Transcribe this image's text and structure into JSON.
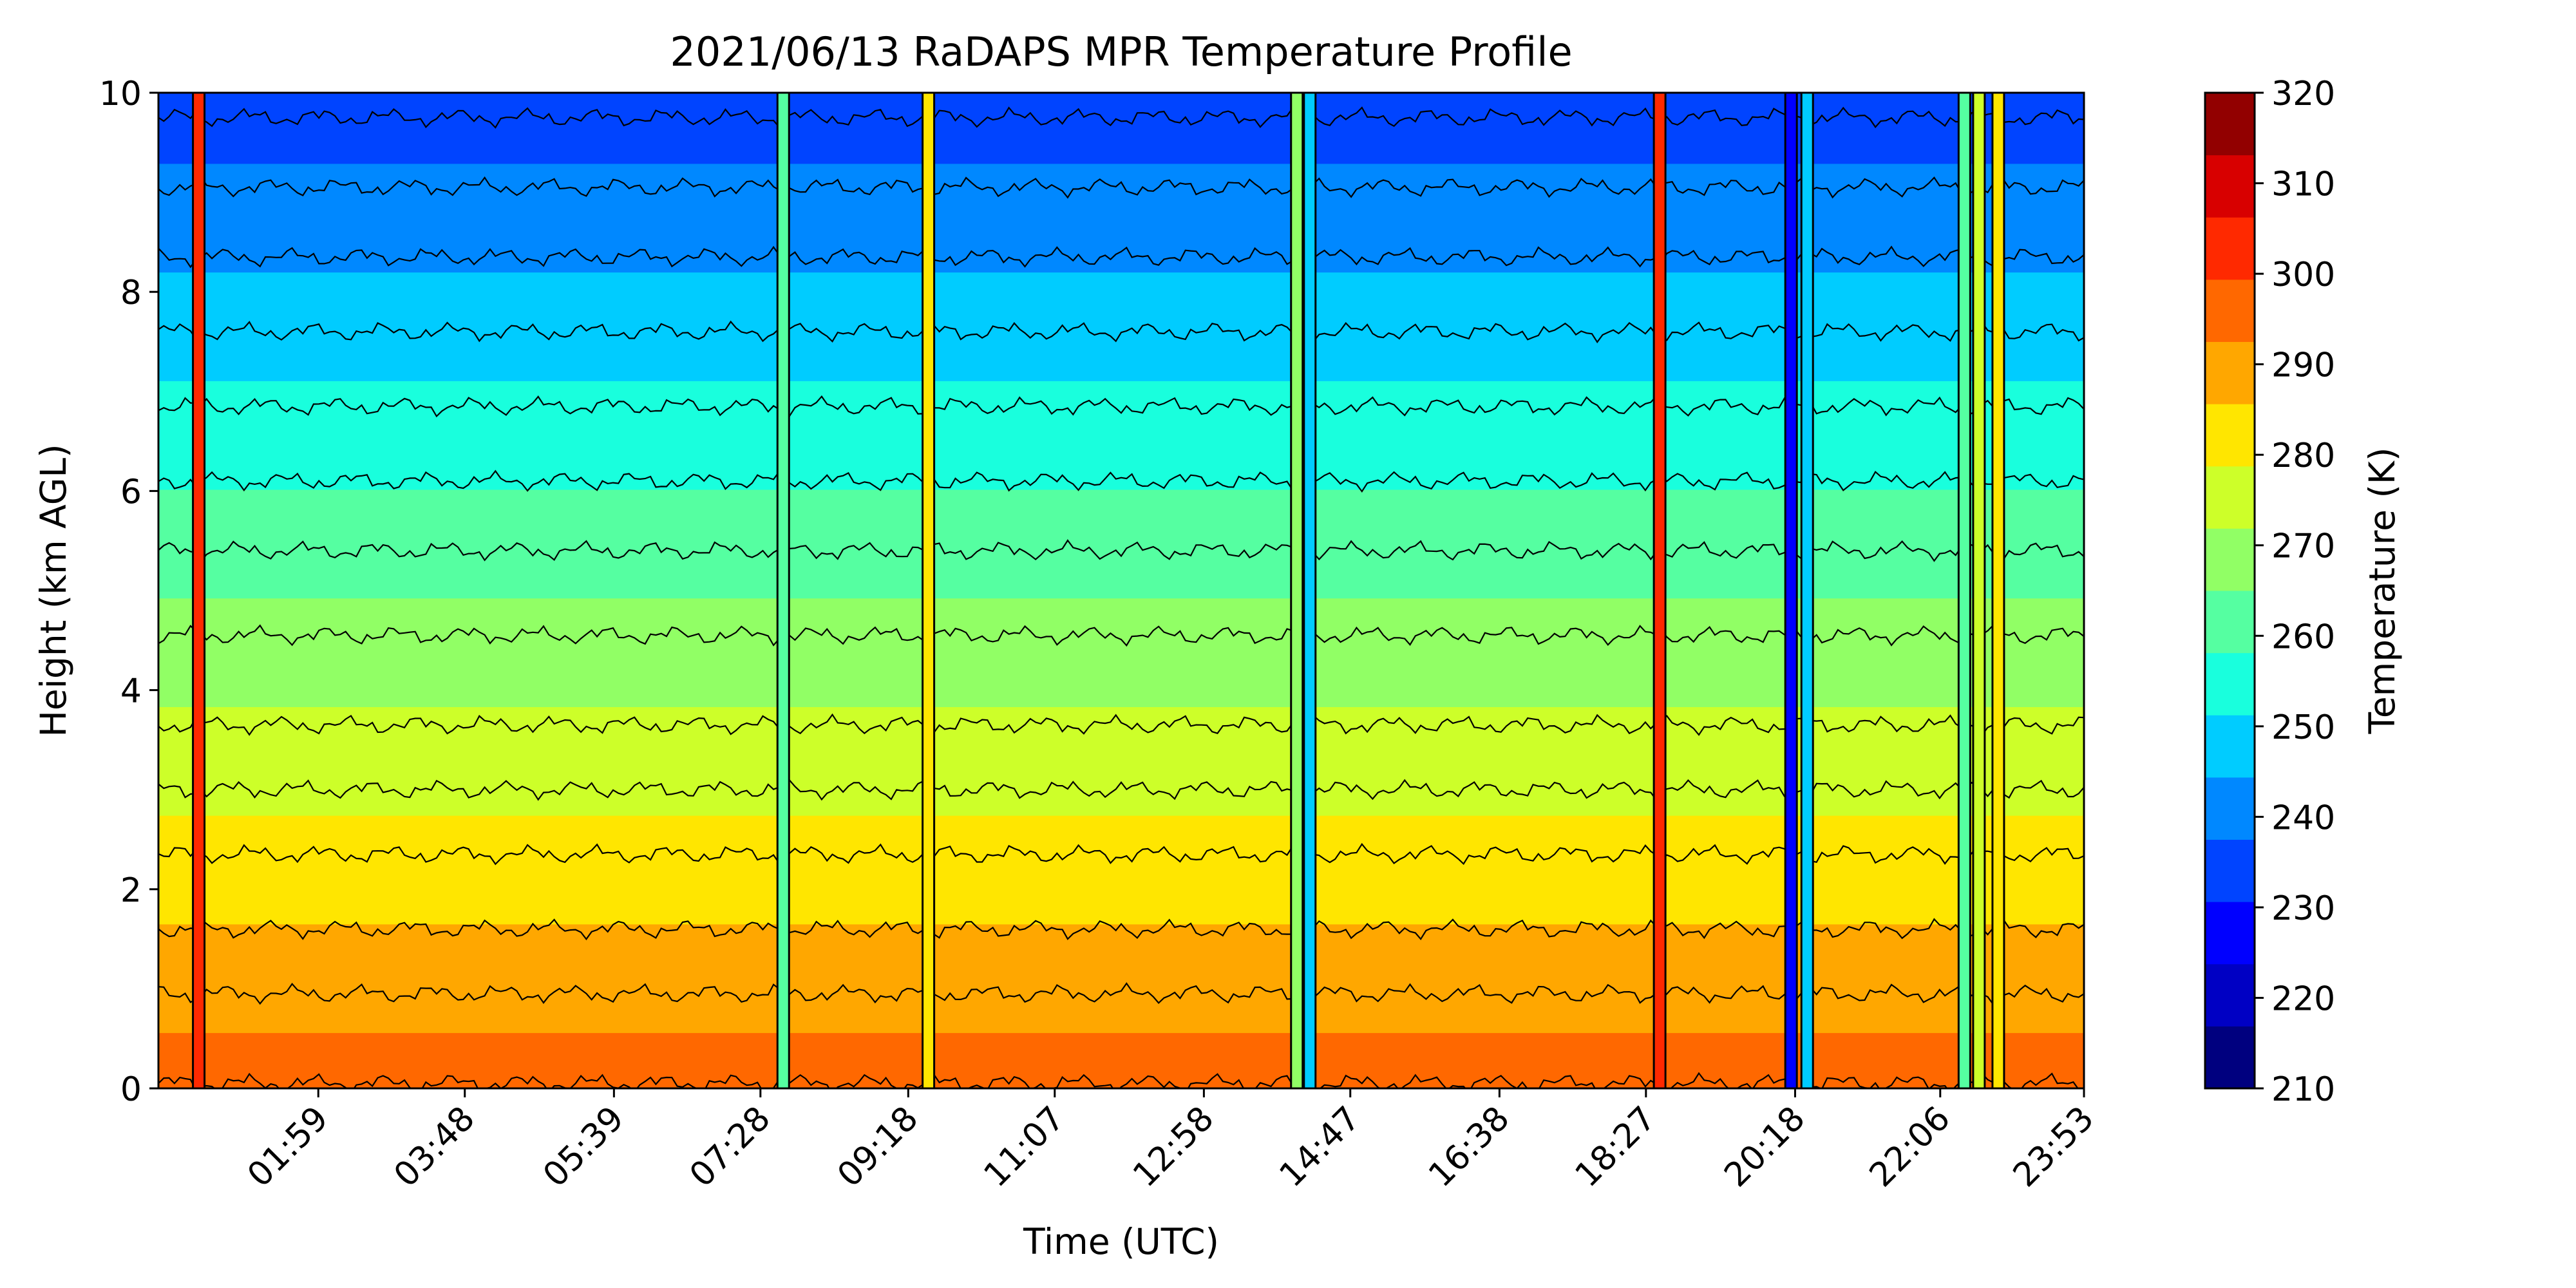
{
  "chart_data": {
    "type": "heatmap",
    "subtype": "filled-contour",
    "title": "2021/06/13 RaDAPS MPR Temperature Profile",
    "xlabel": "Time (UTC)",
    "ylabel": "Height (km AGL)",
    "x_range_hours": [
      0.0,
      23.883
    ],
    "ylim": [
      0,
      10
    ],
    "xticks": [
      {
        "label": "01:59",
        "hour": 1.983
      },
      {
        "label": "03:48",
        "hour": 3.8
      },
      {
        "label": "05:39",
        "hour": 5.65
      },
      {
        "label": "07:28",
        "hour": 7.467
      },
      {
        "label": "09:18",
        "hour": 9.3
      },
      {
        "label": "11:07",
        "hour": 11.117
      },
      {
        "label": "12:58",
        "hour": 12.967
      },
      {
        "label": "14:47",
        "hour": 14.783
      },
      {
        "label": "16:38",
        "hour": 16.633
      },
      {
        "label": "18:27",
        "hour": 18.45
      },
      {
        "label": "20:18",
        "hour": 20.3
      },
      {
        "label": "22:06",
        "hour": 22.1
      },
      {
        "label": "23:53",
        "hour": 23.883
      }
    ],
    "yticks": [
      "0",
      "2",
      "4",
      "6",
      "8",
      "10"
    ],
    "colorbar": {
      "label": "Temperature (K)",
      "min": 210,
      "max": 320,
      "level_step": 5,
      "tick_labels": [
        "210",
        "220",
        "230",
        "240",
        "250",
        "260",
        "270",
        "280",
        "290",
        "300",
        "310",
        "320"
      ],
      "colormap": "jet",
      "level_colors": [
        "#00007f",
        "#0000c4",
        "#0000ff",
        "#0044ff",
        "#0088ff",
        "#00ccff",
        "#19ffdd",
        "#55ffa1",
        "#91ff65",
        "#cdff29",
        "#ffe600",
        "#ffa700",
        "#ff6800",
        "#ff2900",
        "#d80000",
        "#920000"
      ]
    },
    "profile_model": {
      "description": "Temperature decreases roughly linearly with height",
      "surface_temperature_K": 296,
      "lapse_rate_K_per_km": 6.3,
      "contour_heights_km": [
        0.05,
        0.95,
        1.6,
        2.35,
        3.0,
        3.65,
        4.55,
        5.4,
        6.1,
        6.85,
        7.6,
        8.35,
        9.05,
        9.75
      ]
    },
    "anomaly_columns_hours": [
      {
        "hour": 0.5,
        "temp_K": 303
      },
      {
        "hour": 7.75,
        "temp_K": 262
      },
      {
        "hour": 9.55,
        "temp_K": 285
      },
      {
        "hour": 14.12,
        "temp_K": 268
      },
      {
        "hour": 14.28,
        "temp_K": 248
      },
      {
        "hour": 18.62,
        "temp_K": 300
      },
      {
        "hour": 20.25,
        "temp_K": 230
      },
      {
        "hour": 20.45,
        "temp_K": 245
      },
      {
        "hour": 22.4,
        "temp_K": 262
      },
      {
        "hour": 22.58,
        "temp_K": 272
      },
      {
        "hour": 22.82,
        "temp_K": 282
      }
    ]
  }
}
